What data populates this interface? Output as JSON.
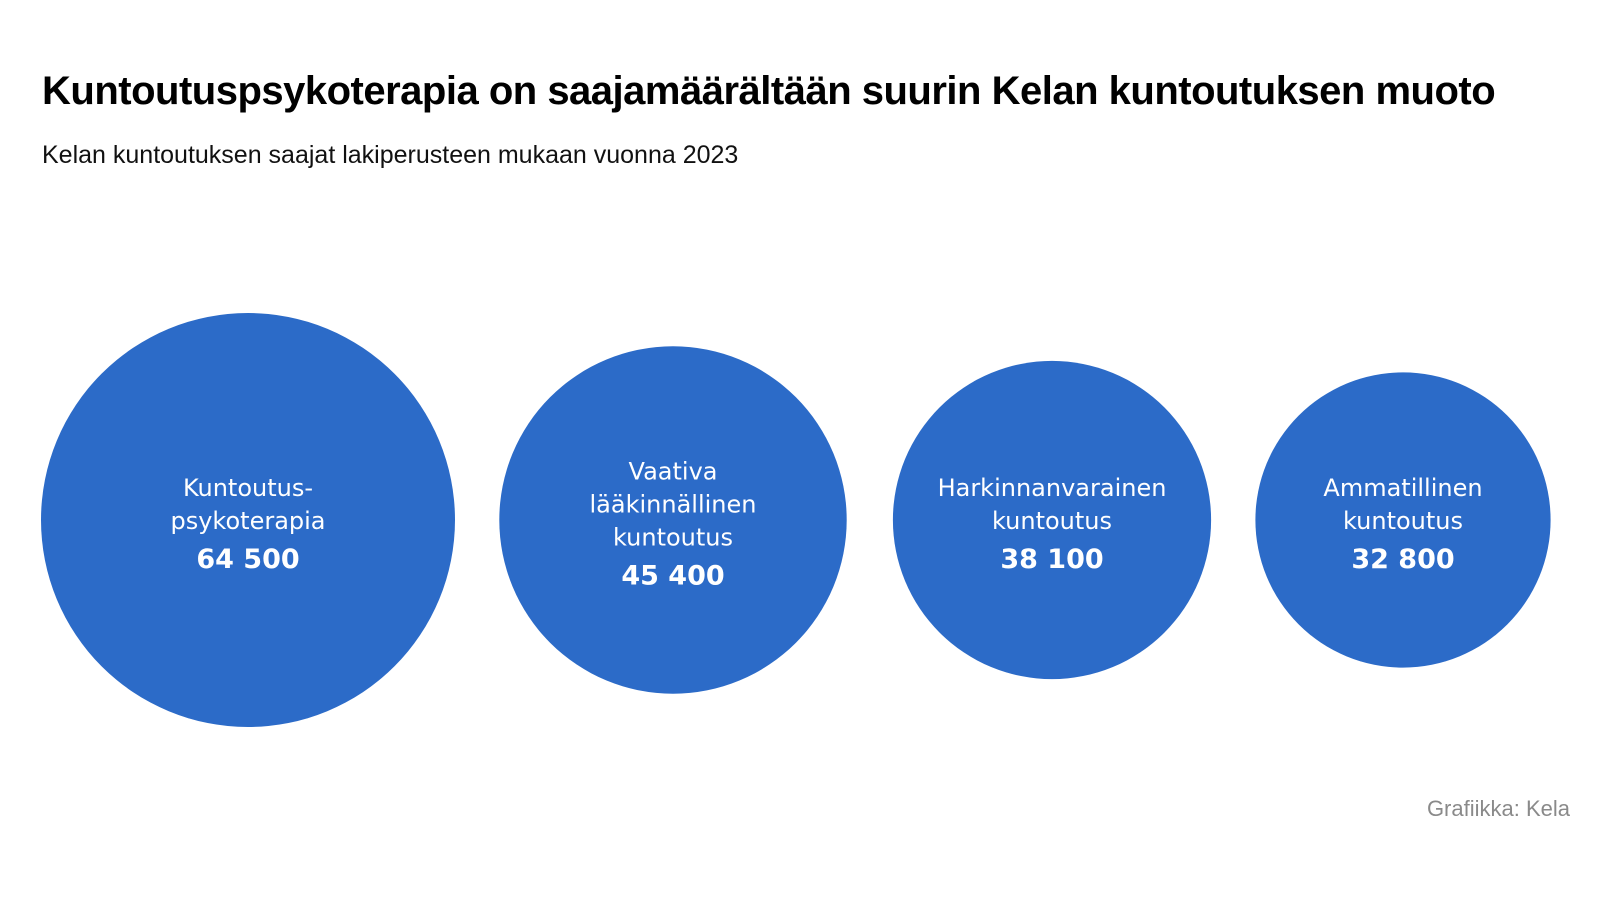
{
  "header": {
    "title": "Kuntoutuspsykoterapia on saajamäärältään suurin Kelan kuntoutuksen muoto",
    "subtitle": "Kelan kuntoutuksen saajat lakiperusteen mukaan vuonna 2023"
  },
  "footer": {
    "credit": "Grafiikka: Kela"
  },
  "colors": {
    "bubble": "#2c6bc8",
    "text_on_bubble": "#ffffff",
    "credit": "#8a8a8a"
  },
  "chart_data": {
    "type": "bubble",
    "title": "Kuntoutuspsykoterapia on saajamäärältään suurin Kelan kuntoutuksen muoto",
    "subtitle": "Kelan kuntoutuksen saajat lakiperusteen mukaan vuonna 2023",
    "categories": [
      [
        "Kuntoutus-",
        "psykoterapia"
      ],
      [
        "Vaativa",
        "lääkinnällinen",
        "kuntoutus"
      ],
      [
        "Harkinnanvarainen",
        "kuntoutus"
      ],
      [
        "Ammatillinen",
        "kuntoutus"
      ]
    ],
    "values": [
      64500,
      45400,
      38100,
      32800
    ],
    "value_labels": [
      "64 500",
      "45 400",
      "38 100",
      "32 800"
    ],
    "legend": "none",
    "grid": false
  }
}
